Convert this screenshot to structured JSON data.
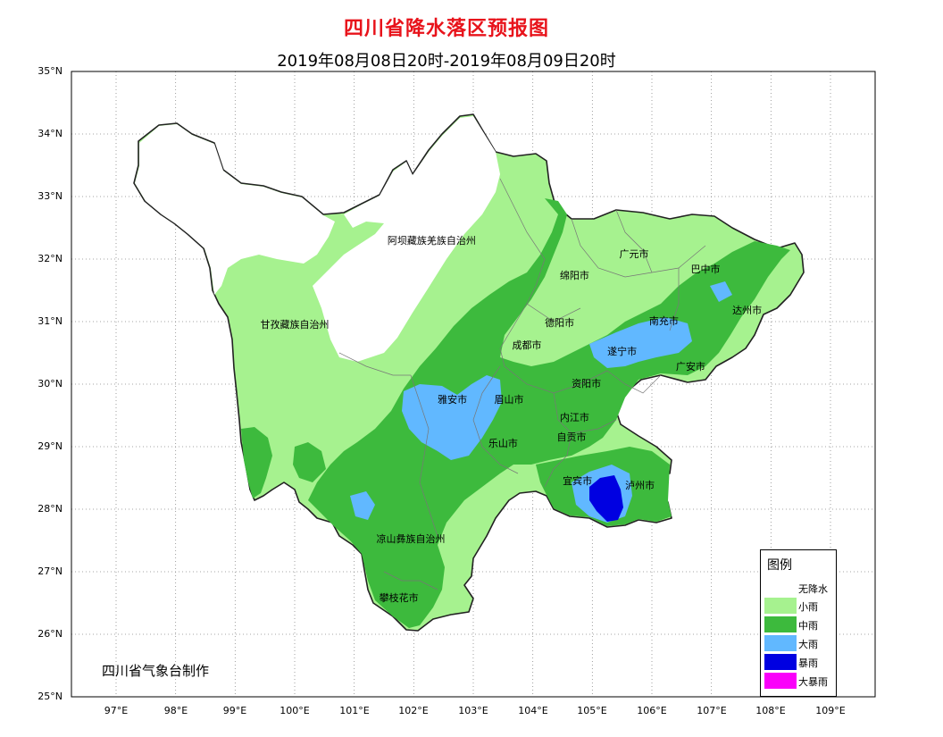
{
  "header": {
    "title": "四川省降水落区预报图",
    "subtitle": "2019年08月08日20时-2019年08月09日20时"
  },
  "axes": {
    "y_labels": [
      "35°N",
      "34°N",
      "33°N",
      "32°N",
      "31°N",
      "30°N",
      "29°N",
      "28°N",
      "27°N",
      "26°N",
      "25°N"
    ],
    "x_labels": [
      "97°E",
      "98°E",
      "99°E",
      "100°E",
      "101°E",
      "102°E",
      "103°E",
      "104°E",
      "105°E",
      "106°E",
      "107°E",
      "108°E",
      "109°E"
    ],
    "lon_range": [
      96.25,
      109.75
    ],
    "lat_range": [
      25,
      35
    ]
  },
  "regions": [
    {
      "name": "阿坝藏族羌族自治州",
      "lon": 102.3,
      "lat": 32.31
    },
    {
      "name": "甘孜藏族自治州",
      "lon": 100.0,
      "lat": 30.97
    },
    {
      "name": "广元市",
      "lon": 105.7,
      "lat": 32.1
    },
    {
      "name": "绵阳市",
      "lon": 104.7,
      "lat": 31.76
    },
    {
      "name": "巴中市",
      "lon": 106.9,
      "lat": 31.86
    },
    {
      "name": "达州市",
      "lon": 107.6,
      "lat": 31.2
    },
    {
      "name": "德阳市",
      "lon": 104.45,
      "lat": 31.0
    },
    {
      "name": "南充市",
      "lon": 106.2,
      "lat": 31.03
    },
    {
      "name": "成都市",
      "lon": 103.9,
      "lat": 30.64
    },
    {
      "name": "遂宁市",
      "lon": 105.5,
      "lat": 30.54
    },
    {
      "name": "广安市",
      "lon": 106.65,
      "lat": 30.3
    },
    {
      "name": "雅安市",
      "lon": 102.65,
      "lat": 29.77
    },
    {
      "name": "眉山市",
      "lon": 103.6,
      "lat": 29.77
    },
    {
      "name": "资阳市",
      "lon": 104.9,
      "lat": 30.03
    },
    {
      "name": "内江市",
      "lon": 104.7,
      "lat": 29.48
    },
    {
      "name": "自贡市",
      "lon": 104.65,
      "lat": 29.17
    },
    {
      "name": "乐山市",
      "lon": 103.5,
      "lat": 29.07
    },
    {
      "name": "宜宾市",
      "lon": 104.75,
      "lat": 28.47
    },
    {
      "name": "泸州市",
      "lon": 105.8,
      "lat": 28.4
    },
    {
      "name": "凉山彝族自治州",
      "lon": 101.95,
      "lat": 27.55
    },
    {
      "name": "攀枝花市",
      "lon": 101.75,
      "lat": 26.6
    }
  ],
  "credit": "四川省气象台制作",
  "legend": {
    "title": "图例",
    "items": [
      {
        "label": "无降水",
        "color": "#ffffff"
      },
      {
        "label": "小雨",
        "color": "#a6f28f"
      },
      {
        "label": "中雨",
        "color": "#3dba3d"
      },
      {
        "label": "大雨",
        "color": "#61b8ff"
      },
      {
        "label": "暴雨",
        "color": "#0000e1"
      },
      {
        "label": "大暴雨",
        "color": "#fa00fa"
      }
    ]
  }
}
